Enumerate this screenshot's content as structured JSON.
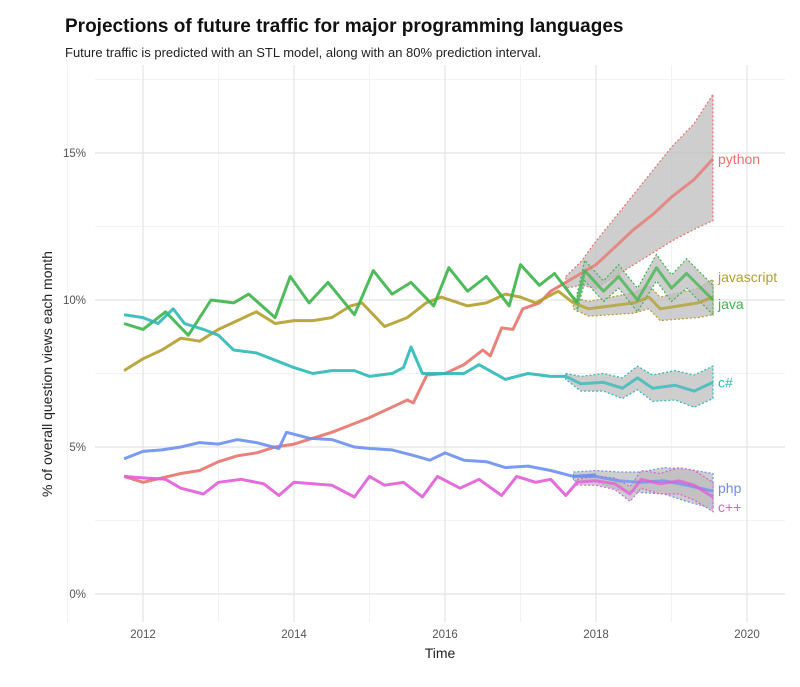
{
  "chart_data": {
    "type": "line",
    "title": "Projections of future traffic for major programming languages",
    "subtitle": "Future traffic is predicted with an STL model, along with an 80% prediction interval.",
    "xlabel": "Time",
    "ylabel": "% of overall question views each month",
    "xlim": [
      2011.3,
      2020.5
    ],
    "ylim": [
      -1,
      17.5
    ],
    "xticks": [
      2012,
      2014,
      2016,
      2018,
      2020
    ],
    "xtick_labels": [
      "2012",
      "2014",
      "2016",
      "2018",
      "2020"
    ],
    "yticks": [
      0,
      5,
      10,
      15
    ],
    "ytick_labels": [
      "0%",
      "5%",
      "10%",
      "15%"
    ],
    "grid": true,
    "legend": "direct labels at line ends",
    "band_color": "#bdbdbd",
    "series": [
      {
        "name": "python",
        "color": "#e8736b",
        "actual": [
          [
            2011.75,
            4.0
          ],
          [
            2012.0,
            3.8
          ],
          [
            2012.25,
            3.95
          ],
          [
            2012.5,
            4.1
          ],
          [
            2012.75,
            4.2
          ],
          [
            2013.0,
            4.5
          ],
          [
            2013.25,
            4.7
          ],
          [
            2013.5,
            4.8
          ],
          [
            2013.75,
            5.0
          ],
          [
            2014.0,
            5.1
          ],
          [
            2014.25,
            5.3
          ],
          [
            2014.5,
            5.5
          ],
          [
            2014.75,
            5.75
          ],
          [
            2015.0,
            6.0
          ],
          [
            2015.25,
            6.3
          ],
          [
            2015.5,
            6.6
          ],
          [
            2015.58,
            6.5
          ],
          [
            2015.76,
            7.45
          ],
          [
            2016.0,
            7.5
          ],
          [
            2016.25,
            7.8
          ],
          [
            2016.5,
            8.3
          ],
          [
            2016.6,
            8.1
          ],
          [
            2016.75,
            9.05
          ],
          [
            2016.9,
            9.0
          ],
          [
            2017.03,
            9.7
          ],
          [
            2017.25,
            9.9
          ],
          [
            2017.4,
            10.3
          ],
          [
            2017.6,
            10.6
          ]
        ],
        "forecast": [
          [
            2017.6,
            10.6,
            10.4,
            10.8
          ],
          [
            2017.8,
            10.9,
            10.5,
            11.3
          ],
          [
            2018.0,
            11.2,
            10.4,
            12.0
          ],
          [
            2018.25,
            11.8,
            10.8,
            12.8
          ],
          [
            2018.5,
            12.4,
            11.2,
            13.6
          ],
          [
            2018.75,
            12.9,
            11.6,
            14.4
          ],
          [
            2019.0,
            13.5,
            12.0,
            15.2
          ],
          [
            2019.3,
            14.1,
            12.4,
            16.0
          ],
          [
            2019.55,
            14.8,
            12.7,
            17.0
          ]
        ]
      },
      {
        "name": "javascript",
        "color": "#b29f2b",
        "actual": [
          [
            2011.75,
            7.6
          ],
          [
            2012.0,
            8.0
          ],
          [
            2012.25,
            8.3
          ],
          [
            2012.5,
            8.7
          ],
          [
            2012.75,
            8.6
          ],
          [
            2013.0,
            9.0
          ],
          [
            2013.25,
            9.3
          ],
          [
            2013.5,
            9.6
          ],
          [
            2013.75,
            9.2
          ],
          [
            2014.0,
            9.3
          ],
          [
            2014.25,
            9.3
          ],
          [
            2014.5,
            9.4
          ],
          [
            2014.75,
            9.8
          ],
          [
            2014.9,
            9.9
          ],
          [
            2015.2,
            9.1
          ],
          [
            2015.5,
            9.4
          ],
          [
            2015.75,
            9.9
          ],
          [
            2015.95,
            10.1
          ],
          [
            2016.3,
            9.8
          ],
          [
            2016.55,
            9.9
          ],
          [
            2016.8,
            10.2
          ],
          [
            2017.0,
            10.1
          ],
          [
            2017.2,
            9.9
          ],
          [
            2017.5,
            10.3
          ],
          [
            2017.7,
            9.9
          ]
        ],
        "forecast": [
          [
            2017.7,
            9.9,
            9.7,
            10.1
          ],
          [
            2017.9,
            9.7,
            9.45,
            9.95
          ],
          [
            2018.2,
            9.8,
            9.5,
            10.1
          ],
          [
            2018.5,
            9.9,
            9.55,
            10.25
          ],
          [
            2018.7,
            10.1,
            9.7,
            10.5
          ],
          [
            2018.85,
            9.7,
            9.3,
            10.1
          ],
          [
            2019.1,
            9.8,
            9.35,
            10.25
          ],
          [
            2019.35,
            9.9,
            9.4,
            10.4
          ],
          [
            2019.55,
            10.1,
            9.5,
            10.7
          ]
        ]
      },
      {
        "name": "java",
        "color": "#3cb54a",
        "actual": [
          [
            2011.75,
            9.2
          ],
          [
            2012.0,
            9.0
          ],
          [
            2012.3,
            9.6
          ],
          [
            2012.6,
            8.8
          ],
          [
            2012.9,
            10.0
          ],
          [
            2013.2,
            9.9
          ],
          [
            2013.4,
            10.2
          ],
          [
            2013.75,
            9.4
          ],
          [
            2013.95,
            10.8
          ],
          [
            2014.2,
            9.9
          ],
          [
            2014.45,
            10.6
          ],
          [
            2014.8,
            9.5
          ],
          [
            2015.05,
            11.0
          ],
          [
            2015.3,
            10.2
          ],
          [
            2015.55,
            10.6
          ],
          [
            2015.85,
            9.8
          ],
          [
            2016.05,
            11.1
          ],
          [
            2016.3,
            10.3
          ],
          [
            2016.55,
            10.8
          ],
          [
            2016.85,
            9.8
          ],
          [
            2017.0,
            11.2
          ],
          [
            2017.25,
            10.5
          ],
          [
            2017.45,
            10.9
          ],
          [
            2017.75,
            9.9
          ]
        ],
        "forecast": [
          [
            2017.75,
            9.9,
            9.6,
            10.2
          ],
          [
            2017.85,
            11.0,
            10.65,
            11.35
          ],
          [
            2018.1,
            10.3,
            9.95,
            10.65
          ],
          [
            2018.3,
            10.8,
            10.4,
            11.2
          ],
          [
            2018.55,
            10.0,
            9.6,
            10.4
          ],
          [
            2018.8,
            11.1,
            10.65,
            11.55
          ],
          [
            2019.0,
            10.4,
            9.95,
            10.85
          ],
          [
            2019.2,
            10.9,
            10.4,
            11.4
          ],
          [
            2019.55,
            10.0,
            9.5,
            10.5
          ]
        ]
      },
      {
        "name": "c#",
        "color": "#2eb8b8",
        "actual": [
          [
            2011.75,
            9.5
          ],
          [
            2012.0,
            9.4
          ],
          [
            2012.2,
            9.2
          ],
          [
            2012.4,
            9.7
          ],
          [
            2012.55,
            9.2
          ],
          [
            2012.8,
            9.0
          ],
          [
            2013.0,
            8.8
          ],
          [
            2013.2,
            8.3
          ],
          [
            2013.5,
            8.2
          ],
          [
            2013.8,
            7.9
          ],
          [
            2014.0,
            7.7
          ],
          [
            2014.25,
            7.5
          ],
          [
            2014.5,
            7.6
          ],
          [
            2014.8,
            7.6
          ],
          [
            2015.0,
            7.4
          ],
          [
            2015.3,
            7.5
          ],
          [
            2015.45,
            7.7
          ],
          [
            2015.55,
            8.4
          ],
          [
            2015.7,
            7.5
          ],
          [
            2016.0,
            7.5
          ],
          [
            2016.25,
            7.5
          ],
          [
            2016.45,
            7.8
          ],
          [
            2016.8,
            7.3
          ],
          [
            2017.1,
            7.5
          ],
          [
            2017.4,
            7.4
          ],
          [
            2017.6,
            7.4
          ]
        ],
        "forecast": [
          [
            2017.6,
            7.4,
            7.3,
            7.5
          ],
          [
            2017.8,
            7.15,
            6.9,
            7.4
          ],
          [
            2018.1,
            7.2,
            6.9,
            7.5
          ],
          [
            2018.35,
            7.0,
            6.65,
            7.35
          ],
          [
            2018.55,
            7.35,
            6.95,
            7.75
          ],
          [
            2018.75,
            7.0,
            6.55,
            7.45
          ],
          [
            2019.05,
            7.1,
            6.6,
            7.6
          ],
          [
            2019.3,
            6.9,
            6.35,
            7.45
          ],
          [
            2019.55,
            7.2,
            6.65,
            7.75
          ]
        ]
      },
      {
        "name": "php",
        "color": "#6d8ff0",
        "actual": [
          [
            2011.75,
            4.6
          ],
          [
            2012.0,
            4.85
          ],
          [
            2012.25,
            4.9
          ],
          [
            2012.5,
            5.0
          ],
          [
            2012.75,
            5.15
          ],
          [
            2013.0,
            5.1
          ],
          [
            2013.25,
            5.25
          ],
          [
            2013.5,
            5.15
          ],
          [
            2013.8,
            4.95
          ],
          [
            2013.9,
            5.5
          ],
          [
            2014.2,
            5.3
          ],
          [
            2014.5,
            5.25
          ],
          [
            2014.8,
            5.0
          ],
          [
            2015.0,
            4.95
          ],
          [
            2015.3,
            4.9
          ],
          [
            2015.6,
            4.7
          ],
          [
            2015.8,
            4.55
          ],
          [
            2016.0,
            4.8
          ],
          [
            2016.25,
            4.55
          ],
          [
            2016.55,
            4.5
          ],
          [
            2016.8,
            4.3
          ],
          [
            2017.1,
            4.35
          ],
          [
            2017.4,
            4.2
          ],
          [
            2017.7,
            4.0
          ],
          [
            2018.0,
            4.05
          ]
        ],
        "forecast": [
          [
            2017.7,
            4.0,
            3.85,
            4.15
          ],
          [
            2018.0,
            4.0,
            3.8,
            4.2
          ],
          [
            2018.3,
            3.85,
            3.55,
            4.15
          ],
          [
            2018.6,
            3.8,
            3.45,
            4.15
          ],
          [
            2018.9,
            3.85,
            3.4,
            4.3
          ],
          [
            2019.2,
            3.7,
            3.15,
            4.25
          ],
          [
            2019.55,
            3.5,
            2.9,
            4.1
          ]
        ]
      },
      {
        "name": "c++",
        "color": "#e35bd8",
        "actual": [
          [
            2011.75,
            4.0
          ],
          [
            2012.0,
            3.95
          ],
          [
            2012.3,
            3.9
          ],
          [
            2012.5,
            3.6
          ],
          [
            2012.8,
            3.4
          ],
          [
            2013.0,
            3.8
          ],
          [
            2013.3,
            3.9
          ],
          [
            2013.6,
            3.75
          ],
          [
            2013.8,
            3.35
          ],
          [
            2014.0,
            3.8
          ],
          [
            2014.25,
            3.75
          ],
          [
            2014.5,
            3.7
          ],
          [
            2014.8,
            3.3
          ],
          [
            2015.0,
            4.0
          ],
          [
            2015.2,
            3.7
          ],
          [
            2015.45,
            3.8
          ],
          [
            2015.7,
            3.3
          ],
          [
            2015.9,
            4.0
          ],
          [
            2016.2,
            3.6
          ],
          [
            2016.45,
            3.9
          ],
          [
            2016.75,
            3.35
          ],
          [
            2016.95,
            4.0
          ],
          [
            2017.2,
            3.8
          ],
          [
            2017.4,
            3.9
          ],
          [
            2017.6,
            3.35
          ],
          [
            2017.75,
            3.8
          ]
        ],
        "forecast": [
          [
            2017.75,
            3.8,
            3.7,
            3.9
          ],
          [
            2018.0,
            3.85,
            3.7,
            4.0
          ],
          [
            2018.25,
            3.75,
            3.55,
            3.95
          ],
          [
            2018.45,
            3.4,
            3.15,
            3.65
          ],
          [
            2018.6,
            3.9,
            3.6,
            4.2
          ],
          [
            2018.85,
            3.75,
            3.4,
            4.1
          ],
          [
            2019.1,
            3.85,
            3.4,
            4.3
          ],
          [
            2019.3,
            3.7,
            3.2,
            4.2
          ],
          [
            2019.55,
            3.3,
            2.8,
            3.8
          ]
        ]
      }
    ]
  }
}
